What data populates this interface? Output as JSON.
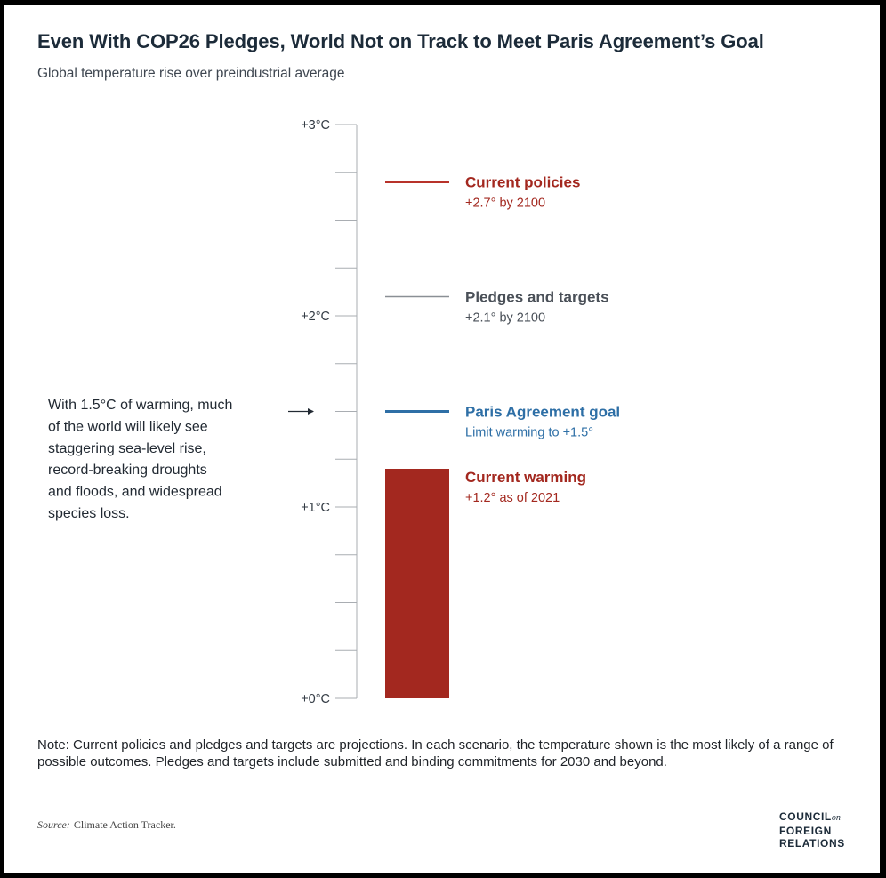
{
  "header": {
    "title": "Even With COP26 Pledges, World Not on Track to Meet Paris Agreement’s Goal",
    "subtitle": "Global temperature rise over preindustrial average"
  },
  "chart_data": {
    "type": "bar",
    "title": "Even With COP26 Pledges, World Not on Track to Meet Paris Agreement’s Goal",
    "subtitle": "Global temperature rise over preindustrial average",
    "ylim": [
      0,
      3
    ],
    "y_ticks": [
      {
        "value": 0,
        "label": "+0°C"
      },
      {
        "value": 0.25,
        "label": ""
      },
      {
        "value": 0.5,
        "label": ""
      },
      {
        "value": 0.75,
        "label": ""
      },
      {
        "value": 1,
        "label": "+1°C"
      },
      {
        "value": 1.25,
        "label": ""
      },
      {
        "value": 1.5,
        "label": ""
      },
      {
        "value": 1.75,
        "label": ""
      },
      {
        "value": 2,
        "label": "+2°C"
      },
      {
        "value": 2.25,
        "label": ""
      },
      {
        "value": 2.5,
        "label": ""
      },
      {
        "value": 2.75,
        "label": ""
      },
      {
        "value": 3,
        "label": "+3°C"
      }
    ],
    "bar": {
      "value": 1.2,
      "name": "Current warming",
      "detail": "+1.2° as of 2021",
      "color": "#a3281f"
    },
    "reference_lines": [
      {
        "value": 2.7,
        "name": "Current policies",
        "detail": "+2.7° by 2100",
        "color": "#b8322a",
        "label_color": "#a3281f"
      },
      {
        "value": 2.1,
        "name": "Pledges and targets",
        "detail": "+2.1° by 2100",
        "color": "#8a8f95",
        "label_color": "#4a5058"
      },
      {
        "value": 1.5,
        "name": "Paris Agreement goal",
        "detail": "Limit warming to +1.5°",
        "color": "#2e6fa6",
        "label_color": "#2e6fa6"
      }
    ],
    "annotation": {
      "value": 1.5,
      "lines": [
        "With 1.5°C of warming, much",
        "of the world will likely see",
        "staggering sea-level rise,",
        "record-breaking droughts",
        "and floods, and widespread",
        "species loss."
      ]
    }
  },
  "footer": {
    "note": "Note: Current policies and pledges and targets are projections. In each scenario, the temperature shown is the most likely of a range of possible outcomes. Pledges and targets include submitted and binding commitments for 2030 and beyond.",
    "source_label": "Source:",
    "source_text": "Climate Action Tracker.",
    "logo_lines": [
      "COUNCIL",
      "FOREIGN",
      "RELATIONS"
    ],
    "logo_small": "on"
  },
  "colors": {
    "axis": "#a9adb2",
    "title": "#1c2b39",
    "text": "#1f2328"
  }
}
